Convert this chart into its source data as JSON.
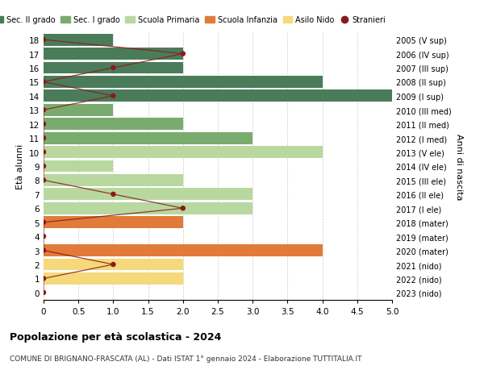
{
  "ages": [
    0,
    1,
    2,
    3,
    4,
    5,
    6,
    7,
    8,
    9,
    10,
    11,
    12,
    13,
    14,
    15,
    16,
    17,
    18
  ],
  "years_by_age": [
    "2023 (nido)",
    "2022 (nido)",
    "2021 (nido)",
    "2020 (mater)",
    "2019 (mater)",
    "2018 (mater)",
    "2017 (I ele)",
    "2016 (II ele)",
    "2015 (III ele)",
    "2014 (IV ele)",
    "2013 (V ele)",
    "2012 (I med)",
    "2011 (II med)",
    "2010 (III med)",
    "2009 (I sup)",
    "2008 (II sup)",
    "2007 (III sup)",
    "2006 (IV sup)",
    "2005 (V sup)"
  ],
  "bar_values": [
    0,
    2,
    2,
    4,
    0,
    2,
    3,
    3,
    2,
    1,
    4,
    3,
    2,
    1,
    5,
    4,
    2,
    2,
    1
  ],
  "bar_colors": [
    "#f5d97a",
    "#f5d97a",
    "#f5d97a",
    "#e07b39",
    "#e07b39",
    "#e07b39",
    "#b8d8a0",
    "#b8d8a0",
    "#b8d8a0",
    "#b8d8a0",
    "#b8d8a0",
    "#7aab6e",
    "#7aab6e",
    "#7aab6e",
    "#4a7c59",
    "#4a7c59",
    "#4a7c59",
    "#4a7c59",
    "#4a7c59"
  ],
  "stranieri_values": [
    0,
    0,
    1,
    0,
    0,
    0,
    2,
    1,
    0,
    0,
    0,
    0,
    0,
    0,
    1,
    0,
    1,
    2,
    0
  ],
  "title": "Popolazione per età scolastica - 2024",
  "subtitle": "COMUNE DI BRIGNANO-FRASCATA (AL) - Dati ISTAT 1° gennaio 2024 - Elaborazione TUTTITALIA.IT",
  "ylabel": "Età alunni",
  "ylabel_right": "Anni di nascita",
  "xlim": [
    0,
    5.0
  ],
  "xticks": [
    0,
    0.5,
    1.0,
    1.5,
    2.0,
    2.5,
    3.0,
    3.5,
    4.0,
    4.5,
    5.0
  ],
  "xtick_labels": [
    "0",
    "0.5",
    "1.0",
    "1.5",
    "2.0",
    "2.5",
    "3.0",
    "3.5",
    "4.0",
    "4.5",
    "5.0"
  ],
  "legend_labels": [
    "Sec. II grado",
    "Sec. I grado",
    "Scuola Primaria",
    "Scuola Infanzia",
    "Asilo Nido",
    "Stranieri"
  ],
  "legend_colors": [
    "#4a7c59",
    "#7aab6e",
    "#b8d8a0",
    "#e07b39",
    "#f5d97a",
    "#8b1a1a"
  ],
  "color_stranieri": "#8b1a1a",
  "bg_color": "#ffffff",
  "grid_color": "#cccccc"
}
